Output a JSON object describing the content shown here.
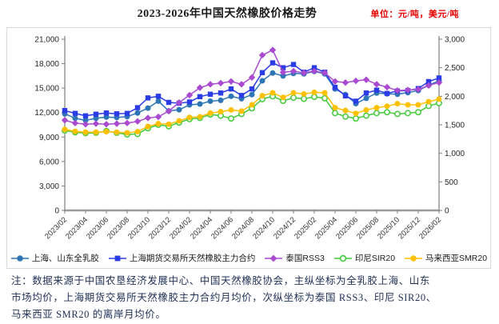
{
  "title": "2023-2026年中国天然橡胶价格走势",
  "unit_label": "单位：元/吨，美元/吨",
  "note": {
    "prefix": "注：",
    "lines": [
      "注：数据来源于中国农垦经济发展中心、中国天然橡胶协会，主纵坐标为全乳胶上海、山东",
      "市场均价，上海期货交易所天然橡胶主力合约月均价，次纵坐标为泰国 RSS3、印尼 SIR20、",
      "马来西亚 SMR20 的离岸月均价。"
    ]
  },
  "chart_data": {
    "type": "line",
    "title": "2023-2026年中国天然橡胶价格走势",
    "grid": false,
    "legend_position": "bottom",
    "x": [
      "2023/02",
      "2023/03",
      "2023/04",
      "2023/05",
      "2023/06",
      "2023/07",
      "2023/08",
      "2023/09",
      "2023/10",
      "2023/11",
      "2023/12",
      "2024/01",
      "2024/02",
      "2024/03",
      "2024/04",
      "2024/05",
      "2024/06",
      "2024/07",
      "2024/08",
      "2024/09",
      "2024/10",
      "2024/11",
      "2024/12",
      "2025/01",
      "2025/02",
      "2025/03",
      "2025/04",
      "2025/05",
      "2025/06",
      "2025/07",
      "2025/08",
      "2025/09",
      "2025/10",
      "2025/11",
      "2025/12",
      "2026/01",
      "2026/02"
    ],
    "x_tick_every": 2,
    "left_axis": {
      "label": "元/吨",
      "min": 0,
      "max": 21000,
      "step": 3000
    },
    "right_axis": {
      "label": "美元/吨",
      "min": 0,
      "max": 3000,
      "step": 500
    },
    "series": [
      {
        "name": "上海、山东全乳胶",
        "axis": "left",
        "marker": "circle",
        "color": "#2E75B6",
        "values": [
          11850,
          11300,
          11050,
          11300,
          11450,
          11400,
          11500,
          11950,
          12550,
          13400,
          12200,
          12350,
          12950,
          13050,
          13400,
          13500,
          14000,
          13700,
          14200,
          15900,
          16850,
          16500,
          16800,
          16750,
          17050,
          16750,
          14900,
          14200,
          13100,
          13750,
          14400,
          14300,
          14250,
          14450,
          14700,
          15350,
          15900
        ]
      },
      {
        "name": "上海期货交易所天然橡胶主力合约",
        "axis": "left",
        "marker": "square",
        "color": "#2B3BE6",
        "values": [
          12250,
          11900,
          11600,
          11800,
          11950,
          11850,
          11900,
          12600,
          13800,
          14000,
          13250,
          13150,
          13300,
          13950,
          14250,
          14400,
          14900,
          14100,
          14900,
          16900,
          18100,
          17500,
          17900,
          16950,
          17500,
          16950,
          15100,
          14050,
          13400,
          14400,
          14750,
          14350,
          14650,
          14700,
          14950,
          15800,
          16250
        ]
      },
      {
        "name": "泰国RSS3",
        "axis": "right",
        "marker": "diamond",
        "color": "#A94AD0",
        "values": [
          1580,
          1530,
          1510,
          1520,
          1510,
          1520,
          1530,
          1560,
          1620,
          1640,
          1740,
          1890,
          2020,
          2150,
          2210,
          2230,
          2260,
          2210,
          2330,
          2720,
          2810,
          2420,
          2440,
          2410,
          2440,
          2410,
          2260,
          2240,
          2270,
          2290,
          2210,
          2160,
          2100,
          2110,
          2120,
          2190,
          2240
        ]
      },
      {
        "name": "印尼SIR20",
        "axis": "right",
        "marker": "open-circle",
        "color": "#44C93C",
        "values": [
          1400,
          1370,
          1355,
          1360,
          1390,
          1360,
          1330,
          1340,
          1440,
          1500,
          1475,
          1540,
          1600,
          1620,
          1680,
          1660,
          1610,
          1690,
          1790,
          1950,
          2000,
          1920,
          1975,
          1955,
          1990,
          1965,
          1705,
          1645,
          1610,
          1660,
          1705,
          1720,
          1690,
          1705,
          1720,
          1830,
          1880
        ]
      },
      {
        "name": "马来西亚SMR20",
        "axis": "right",
        "marker": "circle",
        "color": "#FFC000",
        "values": [
          1420,
          1385,
          1370,
          1370,
          1380,
          1370,
          1360,
          1380,
          1470,
          1520,
          1510,
          1570,
          1630,
          1640,
          1705,
          1730,
          1760,
          1740,
          1850,
          2010,
          2060,
          1980,
          2060,
          2040,
          2070,
          2060,
          1800,
          1750,
          1700,
          1760,
          1800,
          1825,
          1870,
          1850,
          1850,
          1905,
          1950
        ]
      }
    ]
  }
}
